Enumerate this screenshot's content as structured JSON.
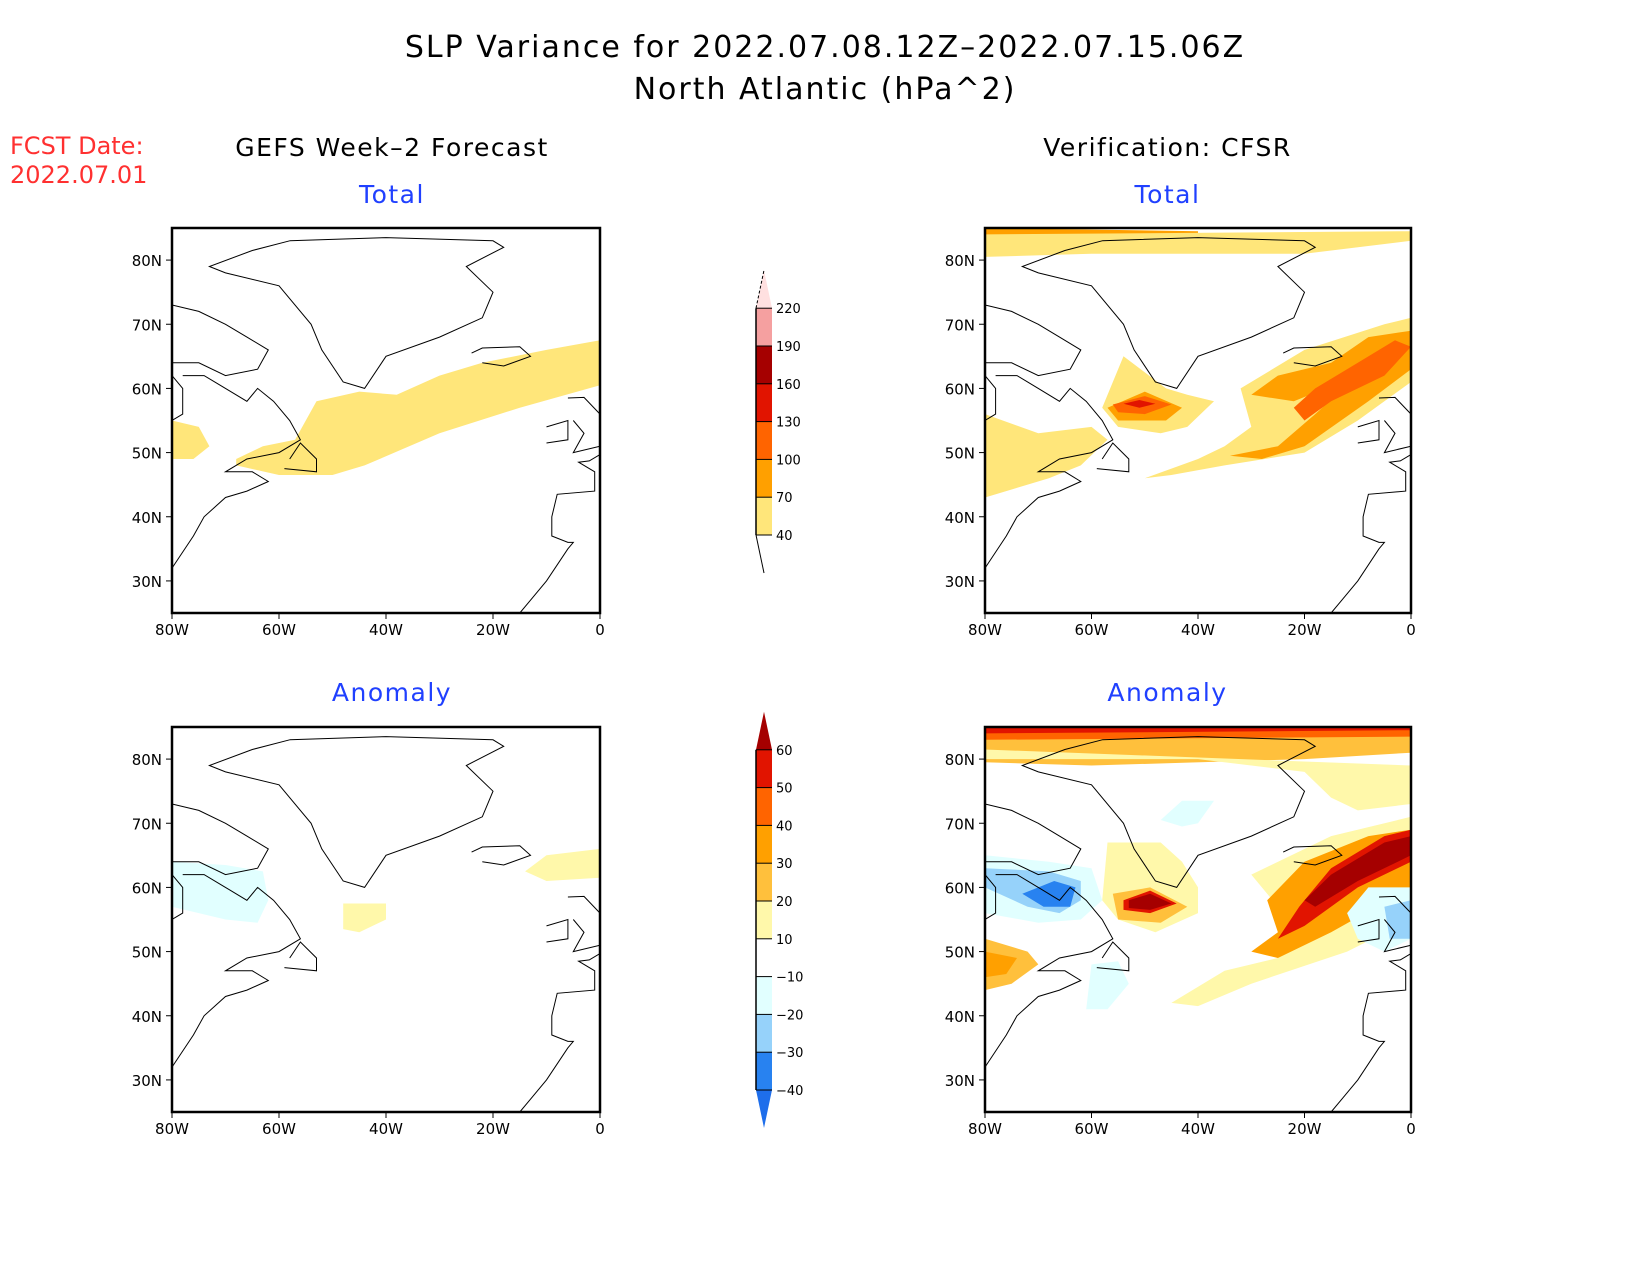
{
  "header": {
    "title_line1": "SLP Variance for 2022.07.08.12Z–2022.07.15.06Z",
    "title_line2": "North Atlantic (hPa^2)",
    "fcst_label": "FCST Date:",
    "fcst_date": "2022.07.01"
  },
  "columns": {
    "left_title": "GEFS Week–2 Forecast",
    "right_title": "Verification: CFSR"
  },
  "panels": {
    "total_label": "Total",
    "anomaly_label": "Anomaly"
  },
  "colors": {
    "title_blue": "#2040ff",
    "fcst_red": "#ff3030"
  },
  "chart_data": [
    {
      "type": "heatmap",
      "name": "GEFS Week-2 Forecast Total",
      "title": "Total",
      "xlabel": "",
      "ylabel": "",
      "x_ticks": [
        "80W",
        "60W",
        "40W",
        "20W",
        "0"
      ],
      "y_ticks": [
        "30N",
        "40N",
        "50N",
        "60N",
        "70N",
        "80N"
      ],
      "lon_range": [
        -80,
        0
      ],
      "lat_range": [
        25,
        85
      ],
      "features": [
        {
          "region": "band from Newfoundland to Iceland/UK",
          "level": "40-70"
        },
        {
          "region": "Hudson Bay south coast",
          "level": "40-70"
        }
      ]
    },
    {
      "type": "heatmap",
      "name": "CFSR Verification Total",
      "title": "Total",
      "x_ticks": [
        "80W",
        "60W",
        "40W",
        "20W",
        "0"
      ],
      "y_ticks": [
        "30N",
        "40N",
        "50N",
        "60N",
        "70N",
        "80N"
      ],
      "lon_range": [
        -80,
        0
      ],
      "lat_range": [
        25,
        85
      ],
      "features": [
        {
          "region": "Labrador Sea max near 57N 50W",
          "level": "130-160"
        },
        {
          "region": "Iceland to UK band",
          "level": "100-130"
        },
        {
          "region": "Arctic north edge",
          "level": "40-100"
        },
        {
          "region": "Hudson Bay / Quebec",
          "level": "40-70"
        }
      ]
    },
    {
      "type": "heatmap",
      "name": "GEFS Week-2 Forecast Anomaly",
      "title": "Anomaly",
      "x_ticks": [
        "80W",
        "60W",
        "40W",
        "20W",
        "0"
      ],
      "y_ticks": [
        "30N",
        "40N",
        "50N",
        "60N",
        "70N",
        "80N"
      ],
      "lon_range": [
        -80,
        0
      ],
      "lat_range": [
        25,
        85
      ],
      "features": [
        {
          "region": "Hudson Bay / Labrador",
          "level": "-20 to -10"
        },
        {
          "region": "south of Greenland ~55N 45W",
          "level": "10-20"
        },
        {
          "region": "east of Iceland",
          "level": "10-20"
        }
      ]
    },
    {
      "type": "heatmap",
      "name": "CFSR Verification Anomaly",
      "title": "Anomaly",
      "x_ticks": [
        "80W",
        "60W",
        "40W",
        "20W",
        "0"
      ],
      "y_ticks": [
        "30N",
        "40N",
        "50N",
        "60N",
        "70N",
        "80N"
      ],
      "lon_range": [
        -80,
        0
      ],
      "lat_range": [
        25,
        85
      ],
      "features": [
        {
          "region": "Labrador Sea ~57N 50W",
          "level": ">60"
        },
        {
          "region": "Iceland to UK band",
          "level": ">60"
        },
        {
          "region": "Arctic north edge",
          "level": "20-60"
        },
        {
          "region": "Hudson Bay",
          "level": "-40 to -30"
        },
        {
          "region": "Great Lakes / Quebec",
          "level": "20-40"
        },
        {
          "region": "west of UK",
          "level": "-30 to -10"
        }
      ]
    },
    {
      "type": "colorbar",
      "name": "total-colorbar",
      "levels": [
        40,
        70,
        100,
        130,
        160,
        190,
        220
      ],
      "labels": [
        "40",
        "70",
        "100",
        "130",
        "160",
        "190",
        "220"
      ],
      "colors": [
        "#ffe67a",
        "#ffa000",
        "#ff6400",
        "#e11400",
        "#a50000",
        "#f5a0a0",
        "#ffe0e0"
      ]
    },
    {
      "type": "colorbar",
      "name": "anomaly-colorbar",
      "levels": [
        -40,
        -30,
        -20,
        -10,
        10,
        20,
        30,
        40,
        50,
        60
      ],
      "labels": [
        "−40",
        "−30",
        "−20",
        "−10",
        "10",
        "20",
        "30",
        "40",
        "50",
        "60"
      ],
      "colors": [
        "#1e6eeb",
        "#2882f0",
        "#96d2fa",
        "#e1ffff",
        "#ffffff",
        "#fff8aa",
        "#ffc03c",
        "#ffa000",
        "#ff6400",
        "#e11400",
        "#a50000"
      ]
    }
  ]
}
